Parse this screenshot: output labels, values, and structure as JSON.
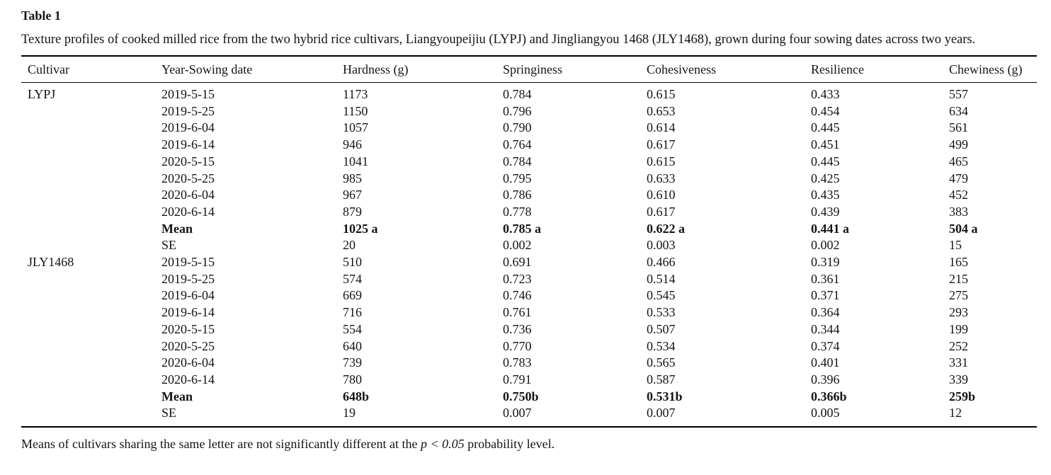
{
  "page": {
    "table_label": "Table 1",
    "caption": "Texture profiles of cooked milled rice from the two hybrid rice cultivars, Liangyoupeijiu (LYPJ) and Jingliangyou 1468 (JLY1468), grown during four sowing dates across two years.",
    "footnote": {
      "prefix": "Means of cultivars sharing the same letter are not significantly different at the ",
      "emphasis": "p < 0.05",
      "suffix": " probability level."
    }
  },
  "table": {
    "columns": [
      "Cultivar",
      "Year-Sowing date",
      "Hardness (g)",
      "Springiness",
      "Cohesiveness",
      "Resilience",
      "Chewiness (g)"
    ],
    "groups": [
      {
        "cultivar": "LYPJ",
        "rows": [
          {
            "label": "2019-5-15",
            "values": [
              "1173",
              "0.784",
              "0.615",
              "0.433",
              "557"
            ],
            "bold": false
          },
          {
            "label": "2019-5-25",
            "values": [
              "1150",
              "0.796",
              "0.653",
              "0.454",
              "634"
            ],
            "bold": false
          },
          {
            "label": "2019-6-04",
            "values": [
              "1057",
              "0.790",
              "0.614",
              "0.445",
              "561"
            ],
            "bold": false
          },
          {
            "label": "2019-6-14",
            "values": [
              "946",
              "0.764",
              "0.617",
              "0.451",
              "499"
            ],
            "bold": false
          },
          {
            "label": "2020-5-15",
            "values": [
              "1041",
              "0.784",
              "0.615",
              "0.445",
              "465"
            ],
            "bold": false
          },
          {
            "label": "2020-5-25",
            "values": [
              "985",
              "0.795",
              "0.633",
              "0.425",
              "479"
            ],
            "bold": false
          },
          {
            "label": "2020-6-04",
            "values": [
              "967",
              "0.786",
              "0.610",
              "0.435",
              "452"
            ],
            "bold": false
          },
          {
            "label": "2020-6-14",
            "values": [
              "879",
              "0.778",
              "0.617",
              "0.439",
              "383"
            ],
            "bold": false
          },
          {
            "label": "Mean",
            "values": [
              "1025 a",
              "0.785 a",
              "0.622 a",
              "0.441 a",
              "504 a"
            ],
            "bold": true
          },
          {
            "label": "SE",
            "values": [
              "20",
              "0.002",
              "0.003",
              "0.002",
              "15"
            ],
            "bold": false
          }
        ]
      },
      {
        "cultivar": "JLY1468",
        "rows": [
          {
            "label": "2019-5-15",
            "values": [
              "510",
              "0.691",
              "0.466",
              "0.319",
              "165"
            ],
            "bold": false
          },
          {
            "label": "2019-5-25",
            "values": [
              "574",
              "0.723",
              "0.514",
              "0.361",
              "215"
            ],
            "bold": false
          },
          {
            "label": "2019-6-04",
            "values": [
              "669",
              "0.746",
              "0.545",
              "0.371",
              "275"
            ],
            "bold": false
          },
          {
            "label": "2019-6-14",
            "values": [
              "716",
              "0.761",
              "0.533",
              "0.364",
              "293"
            ],
            "bold": false
          },
          {
            "label": "2020-5-15",
            "values": [
              "554",
              "0.736",
              "0.507",
              "0.344",
              "199"
            ],
            "bold": false
          },
          {
            "label": "2020-5-25",
            "values": [
              "640",
              "0.770",
              "0.534",
              "0.374",
              "252"
            ],
            "bold": false
          },
          {
            "label": "2020-6-04",
            "values": [
              "739",
              "0.783",
              "0.565",
              "0.401",
              "331"
            ],
            "bold": false
          },
          {
            "label": "2020-6-14",
            "values": [
              "780",
              "0.791",
              "0.587",
              "0.396",
              "339"
            ],
            "bold": false
          },
          {
            "label": "Mean",
            "values": [
              "648b",
              "0.750b",
              "0.531b",
              "0.366b",
              "259b"
            ],
            "bold": true
          },
          {
            "label": "SE",
            "values": [
              "19",
              "0.007",
              "0.007",
              "0.005",
              "12"
            ],
            "bold": false
          }
        ]
      }
    ]
  }
}
